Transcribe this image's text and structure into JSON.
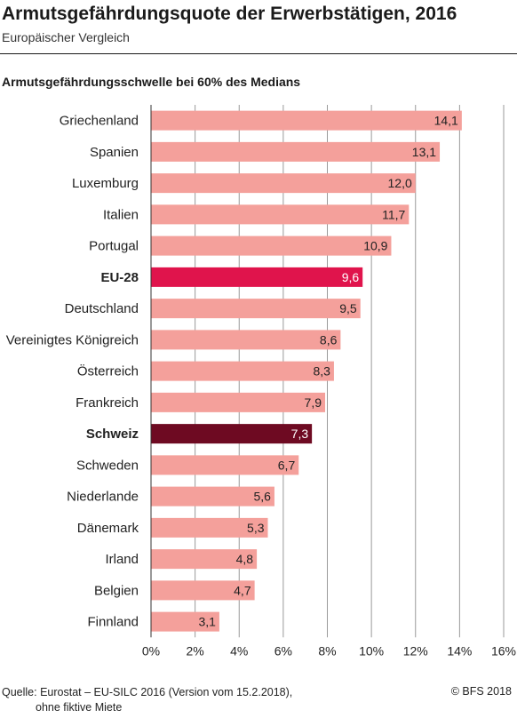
{
  "header": {
    "title": "Armutsgefährdungsquote der Erwerbstätigen, 2016",
    "subtitle": "Europäischer Vergleich"
  },
  "footer": {
    "source_line1": "Quelle: Eurostat – EU-SILC 2016 (Version vom 15.2.2018),",
    "source_line2": "ohne fiktive Miete",
    "copyright": "© BFS 2018"
  },
  "colors": {
    "default_bar": "#f4a09b",
    "eu_bar": "#e0144c",
    "swiss_bar": "#6e0a22",
    "grid": "#9a9a9a"
  },
  "chart_data": {
    "type": "bar",
    "orientation": "horizontal",
    "title": "Armutsgefährdungsquote der Erwerbstätigen, 2016",
    "subtitle": "Armutsgefährdungsschwelle bei 60% des Medians",
    "categories": [
      "Griechenland",
      "Spanien",
      "Luxemburg",
      "Italien",
      "Portugal",
      "EU-28",
      "Deutschland",
      "Vereinigtes Königreich",
      "Österreich",
      "Frankreich",
      "Schweiz",
      "Schweden",
      "Niederlande",
      "Dänemark",
      "Irland",
      "Belgien",
      "Finnland"
    ],
    "values": [
      14.1,
      13.1,
      12.0,
      11.7,
      10.9,
      9.6,
      9.5,
      8.6,
      8.3,
      7.9,
      7.3,
      6.7,
      5.6,
      5.3,
      4.8,
      4.7,
      3.1
    ],
    "value_labels": [
      "14,1",
      "13,1",
      "12,0",
      "11,7",
      "10,9",
      "9,6",
      "9,5",
      "8,6",
      "8,3",
      "7,9",
      "7,3",
      "6,7",
      "5,6",
      "5,3",
      "4,8",
      "4,7",
      "3,1"
    ],
    "highlight": {
      "EU-28": "eu",
      "Schweiz": "swiss"
    },
    "xlim": [
      0,
      16
    ],
    "xticks": [
      0,
      2,
      4,
      6,
      8,
      10,
      12,
      14,
      16
    ],
    "xtick_labels": [
      "0%",
      "2%",
      "4%",
      "6%",
      "8%",
      "10%",
      "12%",
      "14%",
      "16%"
    ],
    "grid": true,
    "legend": "none"
  }
}
